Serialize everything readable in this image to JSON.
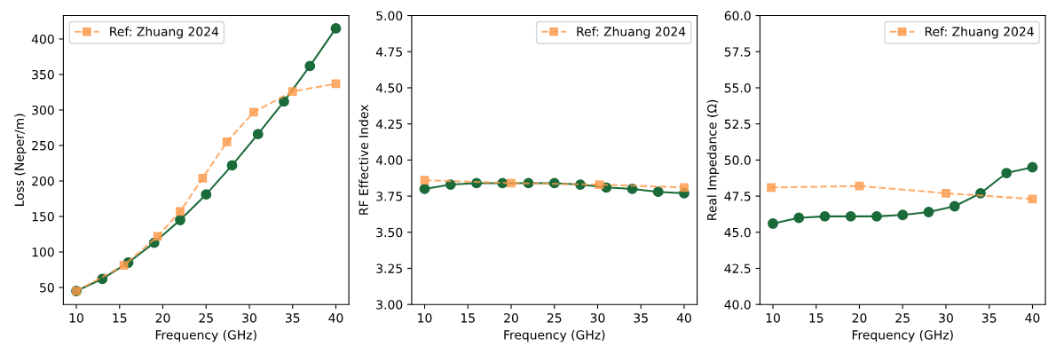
{
  "chart_data": [
    {
      "type": "line",
      "xlabel": "Frequency (GHz)",
      "ylabel": "Loss (Neper/m)",
      "xlim": [
        8.5,
        41.5
      ],
      "xticks": [
        10,
        15,
        20,
        25,
        30,
        35,
        40
      ],
      "ylim": [
        26,
        433
      ],
      "yticks": [
        50,
        100,
        150,
        200,
        250,
        300,
        350,
        400
      ],
      "grid": false,
      "legend": "top left",
      "series": [
        {
          "color": "#1b6b3a",
          "marker": "circle",
          "line_style": "solid",
          "x": [
            10,
            13,
            16,
            19,
            22,
            25,
            28,
            31,
            34,
            37,
            40
          ],
          "values": [
            45,
            62,
            85,
            113,
            145,
            181,
            222,
            266,
            312,
            362,
            415
          ]
        },
        {
          "name": "Ref: Zhuang 2024",
          "color": "#fd9a4b",
          "marker": "square",
          "line_style": "dashed",
          "x": [
            10,
            15.5,
            19.4,
            22,
            24.6,
            27.4,
            30.5,
            35,
            40
          ],
          "values": [
            45,
            81,
            122,
            157,
            204,
            255,
            297,
            326,
            337
          ]
        }
      ]
    },
    {
      "type": "line",
      "xlabel": "Frequency (GHz)",
      "ylabel": "RF Effective Index",
      "xlim": [
        8.5,
        41.5
      ],
      "xticks": [
        10,
        15,
        20,
        25,
        30,
        35,
        40
      ],
      "ylim": [
        3,
        5
      ],
      "yticks": [
        {
          "value": 3,
          "label": "3.00"
        },
        {
          "value": 3.25,
          "label": "3.25"
        },
        {
          "value": 3.5,
          "label": "3.50"
        },
        {
          "value": 3.75,
          "label": "3.75"
        },
        {
          "value": 4,
          "label": "4.00"
        },
        {
          "value": 4.25,
          "label": "4.25"
        },
        {
          "value": 4.5,
          "label": "4.50"
        },
        {
          "value": 4.75,
          "label": "4.75"
        },
        {
          "value": 5,
          "label": "5.00"
        }
      ],
      "grid": false,
      "legend": "top right",
      "series": [
        {
          "color": "#1b6b3a",
          "marker": "circle",
          "line_style": "solid",
          "x": [
            10,
            13,
            16,
            19,
            22,
            25,
            28,
            31,
            34,
            37,
            40
          ],
          "values": [
            3.8,
            3.83,
            3.84,
            3.84,
            3.84,
            3.84,
            3.83,
            3.81,
            3.8,
            3.78,
            3.77
          ]
        },
        {
          "name": "Ref: Zhuang 2024",
          "color": "#fd9a4b",
          "marker": "square",
          "line_style": "dashed",
          "x": [
            10,
            20,
            30.2,
            40
          ],
          "values": [
            3.86,
            3.84,
            3.83,
            3.81
          ]
        }
      ]
    },
    {
      "type": "line",
      "xlabel": "Frequency (GHz)",
      "ylabel": "Real Impedance (Ω)",
      "xlim": [
        8.5,
        41.5
      ],
      "xticks": [
        10,
        15,
        20,
        25,
        30,
        35,
        40
      ],
      "ylim": [
        40,
        60
      ],
      "yticks": [
        {
          "value": 40,
          "label": "40.0"
        },
        {
          "value": 42.5,
          "label": "42.5"
        },
        {
          "value": 45,
          "label": "45.0"
        },
        {
          "value": 47.5,
          "label": "47.5"
        },
        {
          "value": 50,
          "label": "50.0"
        },
        {
          "value": 52.5,
          "label": "52.5"
        },
        {
          "value": 55,
          "label": "55.0"
        },
        {
          "value": 57.5,
          "label": "57.5"
        },
        {
          "value": 60,
          "label": "60.0"
        }
      ],
      "grid": false,
      "legend": "top right",
      "series": [
        {
          "color": "#1b6b3a",
          "marker": "circle",
          "line_style": "solid",
          "x": [
            10,
            13,
            16,
            19,
            22,
            25,
            28,
            31,
            34,
            37,
            40
          ],
          "values": [
            45.6,
            46.0,
            46.1,
            46.1,
            46.1,
            46.2,
            46.4,
            46.8,
            47.7,
            49.1,
            49.5
          ]
        },
        {
          "name": "Ref: Zhuang 2024",
          "color": "#fd9a4b",
          "marker": "square",
          "line_style": "dashed",
          "x": [
            9.8,
            20,
            30,
            40
          ],
          "values": [
            48.1,
            48.2,
            47.7,
            47.3
          ]
        }
      ]
    }
  ]
}
